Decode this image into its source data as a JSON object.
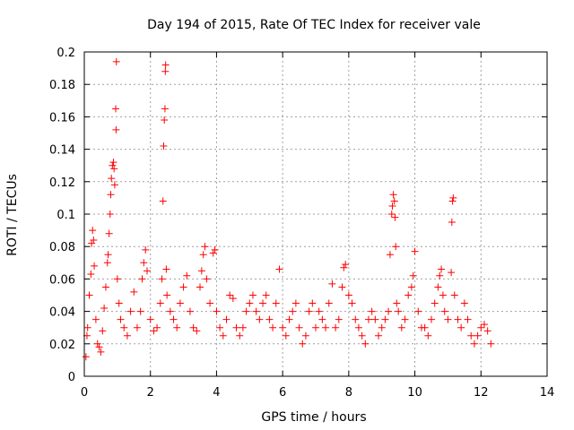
{
  "chart_data": {
    "type": "scatter",
    "title": "Day 194 of 2015, Rate Of TEC Index for receiver vale",
    "xlabel": "GPS time / hours",
    "ylabel": "ROTI / TECUs",
    "xlim": [
      0,
      14
    ],
    "ylim": [
      0,
      0.2
    ],
    "xticks": [
      0,
      2,
      4,
      6,
      8,
      10,
      12,
      14
    ],
    "yticks": [
      0,
      0.02,
      0.04,
      0.06,
      0.08,
      0.1,
      0.12,
      0.14,
      0.16,
      0.18,
      0.2
    ],
    "xtick_labels": [
      "0",
      "2",
      "4",
      "6",
      "8",
      "10",
      "12",
      "14"
    ],
    "ytick_labels": [
      "0",
      "0.02",
      "0.04",
      "0.06",
      "0.08",
      "0.1",
      "0.12",
      "0.14",
      "0.16",
      "0.18",
      "0.2"
    ],
    "grid": true,
    "marker": "+",
    "color": "#ff0000",
    "series": [
      {
        "name": "ROTI",
        "points": [
          [
            0.05,
            0.012
          ],
          [
            0.08,
            0.025
          ],
          [
            0.1,
            0.03
          ],
          [
            0.15,
            0.05
          ],
          [
            0.2,
            0.063
          ],
          [
            0.22,
            0.082
          ],
          [
            0.25,
            0.09
          ],
          [
            0.28,
            0.084
          ],
          [
            0.3,
            0.068
          ],
          [
            0.35,
            0.035
          ],
          [
            0.4,
            0.02
          ],
          [
            0.45,
            0.018
          ],
          [
            0.5,
            0.015
          ],
          [
            0.55,
            0.028
          ],
          [
            0.6,
            0.042
          ],
          [
            0.65,
            0.055
          ],
          [
            0.7,
            0.07
          ],
          [
            0.72,
            0.075
          ],
          [
            0.75,
            0.088
          ],
          [
            0.78,
            0.1
          ],
          [
            0.8,
            0.112
          ],
          [
            0.82,
            0.122
          ],
          [
            0.85,
            0.13
          ],
          [
            0.88,
            0.132
          ],
          [
            0.9,
            0.128
          ],
          [
            0.92,
            0.118
          ],
          [
            0.95,
            0.165
          ],
          [
            0.97,
            0.194
          ],
          [
            0.96,
            0.152
          ],
          [
            1.0,
            0.06
          ],
          [
            1.05,
            0.045
          ],
          [
            1.1,
            0.035
          ],
          [
            1.2,
            0.03
          ],
          [
            1.3,
            0.025
          ],
          [
            1.4,
            0.04
          ],
          [
            1.5,
            0.052
          ],
          [
            1.6,
            0.03
          ],
          [
            1.7,
            0.04
          ],
          [
            1.75,
            0.06
          ],
          [
            1.8,
            0.07
          ],
          [
            1.85,
            0.078
          ],
          [
            1.9,
            0.065
          ],
          [
            2.0,
            0.035
          ],
          [
            2.1,
            0.028
          ],
          [
            2.2,
            0.03
          ],
          [
            2.3,
            0.045
          ],
          [
            2.35,
            0.06
          ],
          [
            2.38,
            0.108
          ],
          [
            2.4,
            0.142
          ],
          [
            2.42,
            0.158
          ],
          [
            2.44,
            0.165
          ],
          [
            2.45,
            0.188
          ],
          [
            2.46,
            0.192
          ],
          [
            2.48,
            0.066
          ],
          [
            2.5,
            0.05
          ],
          [
            2.6,
            0.04
          ],
          [
            2.7,
            0.035
          ],
          [
            2.8,
            0.03
          ],
          [
            2.9,
            0.045
          ],
          [
            3.0,
            0.055
          ],
          [
            3.1,
            0.062
          ],
          [
            3.2,
            0.04
          ],
          [
            3.3,
            0.03
          ],
          [
            3.4,
            0.028
          ],
          [
            3.5,
            0.055
          ],
          [
            3.55,
            0.065
          ],
          [
            3.6,
            0.075
          ],
          [
            3.65,
            0.08
          ],
          [
            3.7,
            0.06
          ],
          [
            3.8,
            0.045
          ],
          [
            3.9,
            0.076
          ],
          [
            3.95,
            0.078
          ],
          [
            4.0,
            0.04
          ],
          [
            4.1,
            0.03
          ],
          [
            4.2,
            0.025
          ],
          [
            4.3,
            0.035
          ],
          [
            4.4,
            0.05
          ],
          [
            4.5,
            0.048
          ],
          [
            4.6,
            0.03
          ],
          [
            4.7,
            0.025
          ],
          [
            4.8,
            0.03
          ],
          [
            4.9,
            0.04
          ],
          [
            5.0,
            0.045
          ],
          [
            5.1,
            0.05
          ],
          [
            5.2,
            0.04
          ],
          [
            5.3,
            0.035
          ],
          [
            5.4,
            0.045
          ],
          [
            5.5,
            0.05
          ],
          [
            5.6,
            0.035
          ],
          [
            5.7,
            0.03
          ],
          [
            5.8,
            0.045
          ],
          [
            5.9,
            0.066
          ],
          [
            6.0,
            0.03
          ],
          [
            6.1,
            0.025
          ],
          [
            6.2,
            0.035
          ],
          [
            6.3,
            0.04
          ],
          [
            6.4,
            0.045
          ],
          [
            6.5,
            0.03
          ],
          [
            6.6,
            0.02
          ],
          [
            6.7,
            0.025
          ],
          [
            6.8,
            0.04
          ],
          [
            6.9,
            0.045
          ],
          [
            7.0,
            0.03
          ],
          [
            7.1,
            0.04
          ],
          [
            7.2,
            0.035
          ],
          [
            7.3,
            0.03
          ],
          [
            7.4,
            0.045
          ],
          [
            7.5,
            0.057
          ],
          [
            7.6,
            0.03
          ],
          [
            7.7,
            0.035
          ],
          [
            7.8,
            0.055
          ],
          [
            7.85,
            0.067
          ],
          [
            7.9,
            0.069
          ],
          [
            8.0,
            0.05
          ],
          [
            8.1,
            0.045
          ],
          [
            8.2,
            0.035
          ],
          [
            8.3,
            0.03
          ],
          [
            8.4,
            0.025
          ],
          [
            8.5,
            0.02
          ],
          [
            8.6,
            0.035
          ],
          [
            8.7,
            0.04
          ],
          [
            8.8,
            0.035
          ],
          [
            8.9,
            0.025
          ],
          [
            9.0,
            0.03
          ],
          [
            9.1,
            0.035
          ],
          [
            9.2,
            0.04
          ],
          [
            9.25,
            0.075
          ],
          [
            9.3,
            0.1
          ],
          [
            9.32,
            0.105
          ],
          [
            9.35,
            0.112
          ],
          [
            9.38,
            0.108
          ],
          [
            9.4,
            0.098
          ],
          [
            9.42,
            0.08
          ],
          [
            9.45,
            0.045
          ],
          [
            9.5,
            0.04
          ],
          [
            9.6,
            0.03
          ],
          [
            9.7,
            0.035
          ],
          [
            9.8,
            0.05
          ],
          [
            9.9,
            0.055
          ],
          [
            9.95,
            0.062
          ],
          [
            10.0,
            0.077
          ],
          [
            10.1,
            0.04
          ],
          [
            10.2,
            0.03
          ],
          [
            10.3,
            0.03
          ],
          [
            10.4,
            0.025
          ],
          [
            10.5,
            0.035
          ],
          [
            10.6,
            0.045
          ],
          [
            10.7,
            0.055
          ],
          [
            10.75,
            0.062
          ],
          [
            10.8,
            0.066
          ],
          [
            10.85,
            0.05
          ],
          [
            10.9,
            0.04
          ],
          [
            11.0,
            0.035
          ],
          [
            11.1,
            0.064
          ],
          [
            11.12,
            0.095
          ],
          [
            11.14,
            0.108
          ],
          [
            11.16,
            0.11
          ],
          [
            11.2,
            0.05
          ],
          [
            11.3,
            0.035
          ],
          [
            11.4,
            0.03
          ],
          [
            11.5,
            0.045
          ],
          [
            11.6,
            0.035
          ],
          [
            11.7,
            0.025
          ],
          [
            11.8,
            0.02
          ],
          [
            11.9,
            0.025
          ],
          [
            12.0,
            0.03
          ],
          [
            12.1,
            0.032
          ],
          [
            12.2,
            0.028
          ],
          [
            12.3,
            0.02
          ]
        ]
      }
    ]
  }
}
